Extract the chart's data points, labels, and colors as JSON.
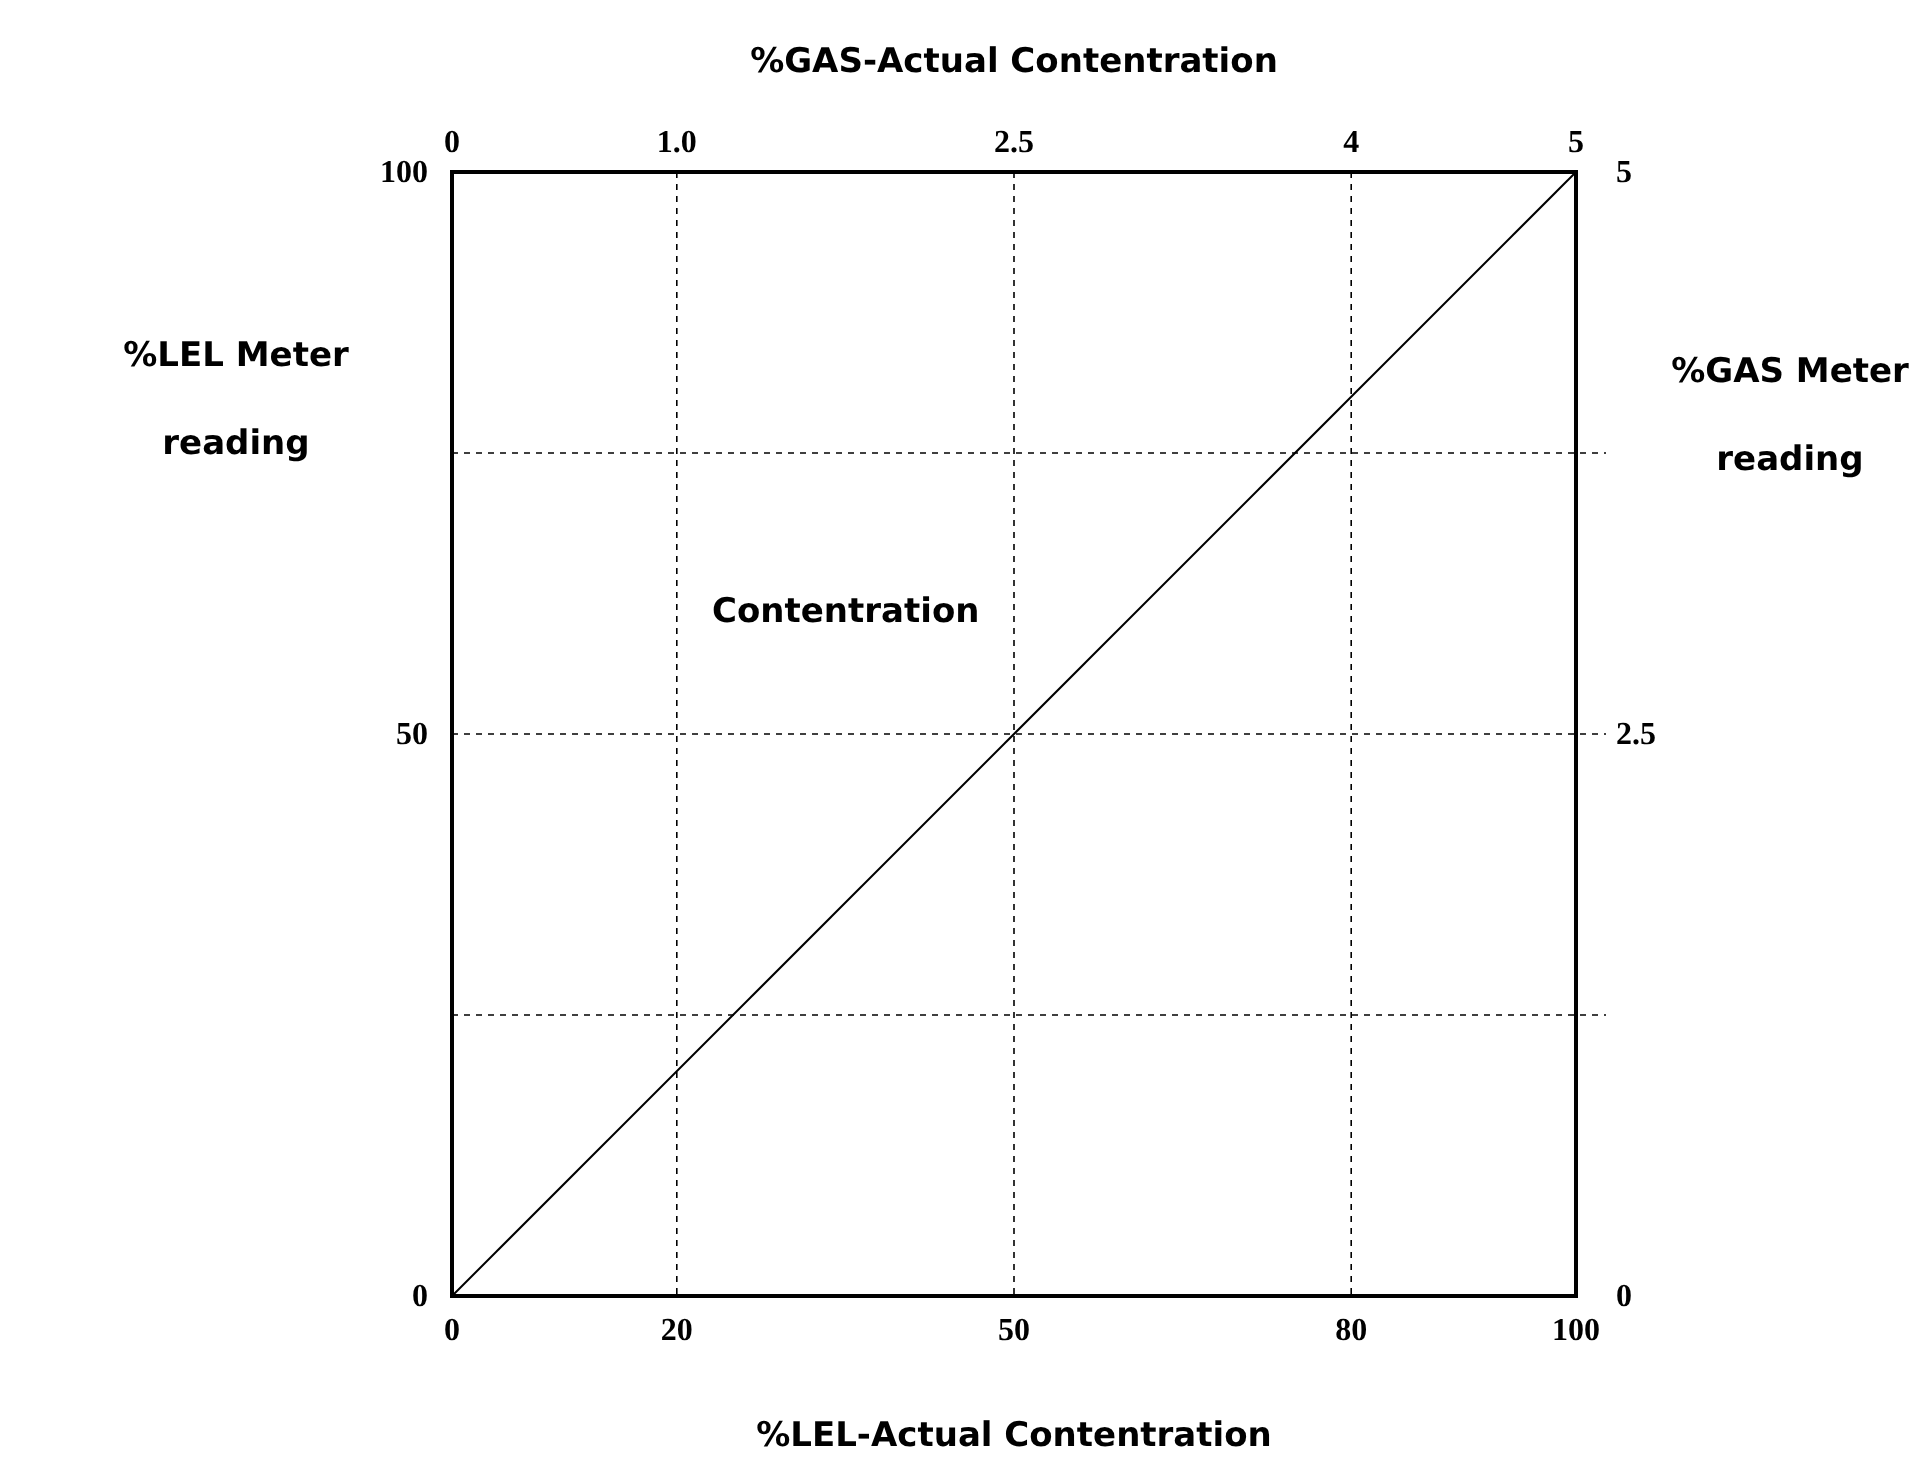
{
  "chart_data": {
    "type": "line",
    "xlabel": "%LEL-Actual Contentration",
    "x2label": "%GAS-Actual Contentration",
    "ylabel": "%LEL Meter reading",
    "y2label": "%GAS Meter reading",
    "annotations": [
      "Contentration"
    ],
    "x": [
      0,
      100
    ],
    "series": [
      {
        "color": "#000000",
        "values": [
          0,
          100
        ]
      }
    ],
    "xlim": [
      0,
      100
    ],
    "xticks": [
      0,
      20,
      50,
      80,
      100
    ],
    "x2lim": [
      0,
      5
    ],
    "x2ticks": [
      0,
      "1.0",
      2.5,
      4,
      5
    ],
    "ylim": [
      0,
      100
    ],
    "yticks": [
      0,
      {
        "value": 25,
        "label": null
      },
      50,
      {
        "value": 75,
        "label": null
      },
      100
    ],
    "y2lim": [
      0,
      5
    ],
    "y2ticks": [
      0,
      2.5,
      5
    ],
    "grid": true,
    "marker": "none",
    "line_style": "solid"
  }
}
